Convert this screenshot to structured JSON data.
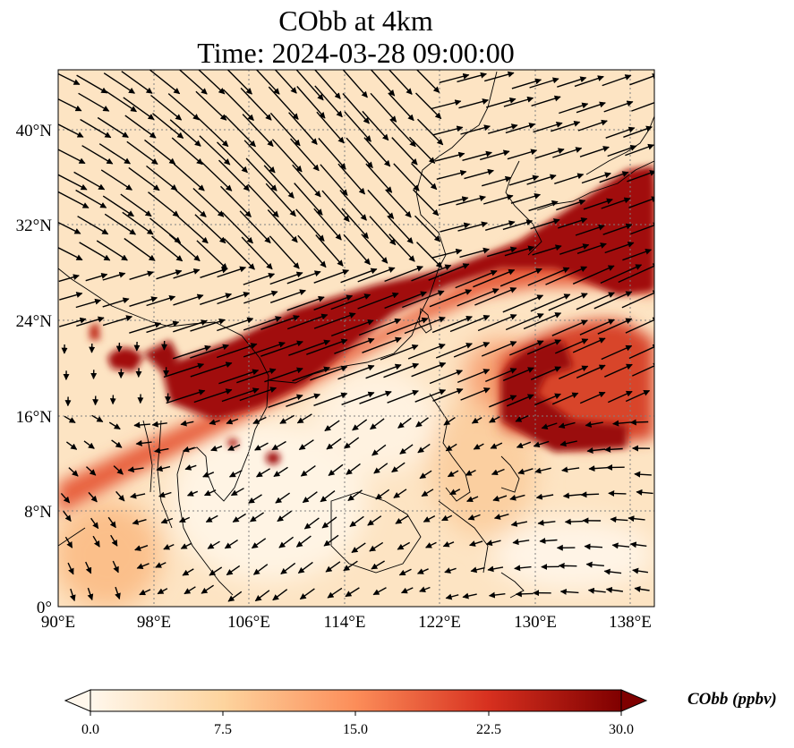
{
  "title": {
    "line1": "CObb at 4km",
    "line2": "Time: 2024-03-28 09:00:00"
  },
  "map": {
    "variable": "CObb",
    "level": "4km",
    "lon_range": [
      90,
      140
    ],
    "lat_range": [
      0,
      44
    ],
    "x_ticks": [
      "90°E",
      "98°E",
      "106°E",
      "114°E",
      "122°E",
      "130°E",
      "138°E"
    ],
    "y_ticks": [
      "0°",
      "8°N",
      "16°N",
      "24°N",
      "32°N",
      "40°N"
    ],
    "gridlines": true,
    "coastlines": true,
    "wind_vectors": true,
    "plume": "high CObb band from Indochina (~98°E,18°N) northeastward to Japan (~140°E,32°N), with a branch wrapping south near 128–136°E, 16–24°N"
  },
  "colorbar": {
    "label": "CObb (ppbv)",
    "ticks": [
      "0.0",
      "7.5",
      "15.0",
      "22.5",
      "30.0"
    ],
    "range": [
      0,
      30
    ],
    "cmap": "OrRd",
    "colors": [
      "#fff7ec",
      "#fdd49e",
      "#fc8d59",
      "#d7301f",
      "#7f0000"
    ],
    "extend": "both"
  }
}
